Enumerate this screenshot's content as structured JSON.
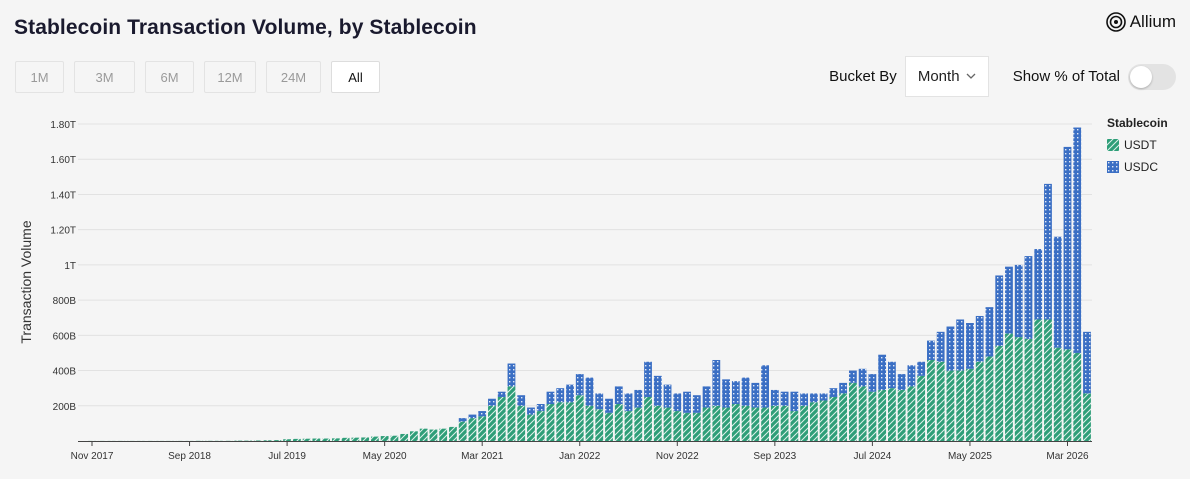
{
  "header": {
    "title": "Stablecoin Transaction Volume, by Stablecoin",
    "brand": "Allium"
  },
  "range_buttons": [
    {
      "label": "1M",
      "active": false
    },
    {
      "label": "3M",
      "active": false
    },
    {
      "label": "6M",
      "active": false
    },
    {
      "label": "12M",
      "active": false
    },
    {
      "label": "24M",
      "active": false
    },
    {
      "label": "All",
      "active": true
    }
  ],
  "controls": {
    "bucket_label": "Bucket By",
    "bucket_value": "Month",
    "pct_label": "Show % of Total",
    "pct_on": false
  },
  "legend": {
    "title": "Stablecoin",
    "items": [
      {
        "label": "USDT",
        "color": "#2e9e78",
        "pattern": "diagonal-stripes"
      },
      {
        "label": "USDC",
        "color": "#3b6fc4",
        "pattern": "dotted-grid"
      }
    ]
  },
  "chart_data": {
    "type": "bar",
    "stacked": true,
    "title": "Stablecoin Transaction Volume, by Stablecoin",
    "xlabel": "",
    "ylabel": "Transaction Volume",
    "ylim": [
      0,
      1800000000000
    ],
    "y_ticks": [
      {
        "value": 200000000000,
        "label": "200B"
      },
      {
        "value": 400000000000,
        "label": "400B"
      },
      {
        "value": 600000000000,
        "label": "600B"
      },
      {
        "value": 800000000000,
        "label": "800B"
      },
      {
        "value": 1000000000000,
        "label": "1T"
      },
      {
        "value": 1200000000000,
        "label": "1.20T"
      },
      {
        "value": 1400000000000,
        "label": "1.40T"
      },
      {
        "value": 1600000000000,
        "label": "1.60T"
      },
      {
        "value": 1800000000000,
        "label": "1.80T"
      }
    ],
    "x_ticks": [
      {
        "index": 0,
        "label": "Nov 2017"
      },
      {
        "index": 10,
        "label": "Sep 2018"
      },
      {
        "index": 20,
        "label": "Jul 2019"
      },
      {
        "index": 30,
        "label": "May 2020"
      },
      {
        "index": 40,
        "label": "Mar 2021"
      },
      {
        "index": 50,
        "label": "Jan 2022"
      },
      {
        "index": 60,
        "label": "Nov 2022"
      },
      {
        "index": 70,
        "label": "Sep 2023"
      },
      {
        "index": 80,
        "label": "Jul 2024"
      },
      {
        "index": 90,
        "label": "May 2025"
      },
      {
        "index": 100,
        "label": "Mar 2026"
      }
    ],
    "x_start": "2017-11",
    "unit": "B",
    "grid": true,
    "legend_position": "right",
    "series": [
      {
        "name": "USDT",
        "color": "#2e9e78",
        "values": [
          0.5,
          0.5,
          0.5,
          0.5,
          0.5,
          0.5,
          0.5,
          0.5,
          0.5,
          0.5,
          0.5,
          1,
          1,
          1,
          1,
          2,
          2,
          3,
          4,
          5,
          10,
          12,
          13,
          14,
          14,
          15,
          18,
          19,
          20,
          25,
          28,
          30,
          40,
          55,
          70,
          65,
          70,
          80,
          110,
          130,
          140,
          200,
          250,
          310,
          200,
          150,
          170,
          210,
          220,
          220,
          260,
          200,
          180,
          160,
          210,
          170,
          190,
          250,
          200,
          190,
          170,
          160,
          160,
          190,
          200,
          190,
          210,
          200,
          190,
          190,
          200,
          200,
          170,
          200,
          220,
          230,
          250,
          270,
          330,
          310,
          280,
          290,
          300,
          290,
          310,
          370,
          460,
          450,
          400,
          400,
          410,
          450,
          480,
          540,
          610,
          590,
          580,
          690,
          690,
          530,
          520,
          500,
          270
        ]
      },
      {
        "name": "USDC",
        "color": "#3b6fc4",
        "values": [
          0,
          0,
          0,
          0,
          0,
          0,
          0,
          0,
          0,
          0,
          0,
          0,
          0,
          0,
          0,
          0,
          0,
          0,
          0,
          0,
          0,
          0,
          0,
          0,
          0,
          0,
          0,
          0,
          0,
          0,
          0,
          0,
          0,
          0,
          0,
          0,
          0,
          0,
          20,
          20,
          30,
          40,
          30,
          130,
          60,
          40,
          40,
          70,
          80,
          100,
          120,
          160,
          90,
          80,
          100,
          100,
          100,
          200,
          170,
          130,
          100,
          120,
          100,
          120,
          260,
          160,
          130,
          160,
          140,
          240,
          90,
          80,
          110,
          70,
          50,
          40,
          50,
          60,
          70,
          100,
          100,
          200,
          150,
          90,
          120,
          80,
          110,
          170,
          250,
          290,
          260,
          260,
          280,
          400,
          380,
          410,
          470,
          400,
          770,
          630,
          1150,
          1280,
          350
        ]
      }
    ]
  }
}
